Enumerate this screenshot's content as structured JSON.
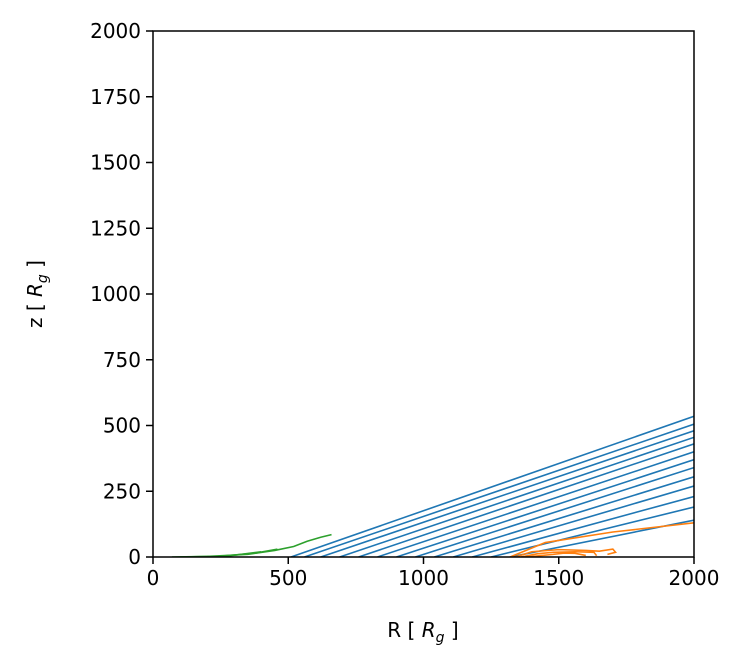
{
  "chart_data": {
    "type": "line",
    "xlabel": "R [ R_g ]",
    "ylabel": "z [ R_g ]",
    "xlabel_parts": {
      "pre": "R [ ",
      "var": "R",
      "sub": "g",
      "post": " ]"
    },
    "ylabel_parts": {
      "pre": "z [ ",
      "var": "R",
      "sub": "g",
      "post": " ]"
    },
    "xlim": [
      0,
      2000
    ],
    "ylim": [
      0,
      2000
    ],
    "xticks": [
      0,
      500,
      1000,
      1500,
      2000
    ],
    "yticks": [
      0,
      250,
      500,
      750,
      1000,
      1250,
      1500,
      1750,
      2000
    ],
    "grid": false,
    "colors": {
      "escaping": "#1f77b4",
      "failed_outer": "#ff7f0e",
      "failed_inner": "#2ca02c"
    },
    "series": [
      {
        "color_key": "escaping",
        "streamlines": [
          {
            "x": [
              510,
              2000
            ],
            "y": [
              0,
              535
            ]
          },
          {
            "x": [
              560,
              2000
            ],
            "y": [
              0,
              505
            ]
          },
          {
            "x": [
              620,
              2000
            ],
            "y": [
              0,
              480
            ]
          },
          {
            "x": [
              690,
              2000
            ],
            "y": [
              0,
              455
            ]
          },
          {
            "x": [
              760,
              2000
            ],
            "y": [
              0,
              430
            ]
          },
          {
            "x": [
              830,
              2000
            ],
            "y": [
              0,
              400
            ]
          },
          {
            "x": [
              900,
              2000
            ],
            "y": [
              0,
              370
            ]
          },
          {
            "x": [
              970,
              2000
            ],
            "y": [
              0,
              340
            ]
          },
          {
            "x": [
              1040,
              2000
            ],
            "y": [
              0,
              305
            ]
          },
          {
            "x": [
              1110,
              2000
            ],
            "y": [
              0,
              270
            ]
          },
          {
            "x": [
              1180,
              2000
            ],
            "y": [
              0,
              230
            ]
          },
          {
            "x": [
              1250,
              2000
            ],
            "y": [
              0,
              190
            ]
          },
          {
            "x": [
              1320,
              2000
            ],
            "y": [
              0,
              140
            ]
          }
        ]
      },
      {
        "color_key": "failed_outer",
        "streamlines": [
          {
            "x": [
              1320,
              1450,
              1700,
              2000
            ],
            "y": [
              0,
              55,
              95,
              130
            ]
          },
          {
            "x": [
              1340,
              1400,
              1500,
              1600,
              1650,
              1700,
              1710,
              1680
            ],
            "y": [
              0,
              20,
              28,
              25,
              22,
              30,
              18,
              10
            ]
          },
          {
            "x": [
              1360,
              1420,
              1480,
              1560,
              1630,
              1640
            ],
            "y": [
              0,
              12,
              18,
              20,
              18,
              5
            ]
          },
          {
            "x": [
              1380,
              1430,
              1480,
              1520,
              1560,
              1600
            ],
            "y": [
              0,
              5,
              10,
              15,
              14,
              6
            ]
          }
        ]
      },
      {
        "color_key": "failed_inner",
        "streamlines": [
          {
            "x": [
              70,
              200,
              350,
              450,
              520,
              570,
              620,
              660
            ],
            "y": [
              0,
              2,
              10,
              25,
              40,
              60,
              75,
              85
            ]
          },
          {
            "x": [
              100,
              250,
              380,
              460
            ],
            "y": [
              0,
              3,
              15,
              30
            ]
          },
          {
            "x": [
              150,
              280,
              400
            ],
            "y": [
              0,
              4,
              20
            ]
          }
        ]
      }
    ]
  }
}
